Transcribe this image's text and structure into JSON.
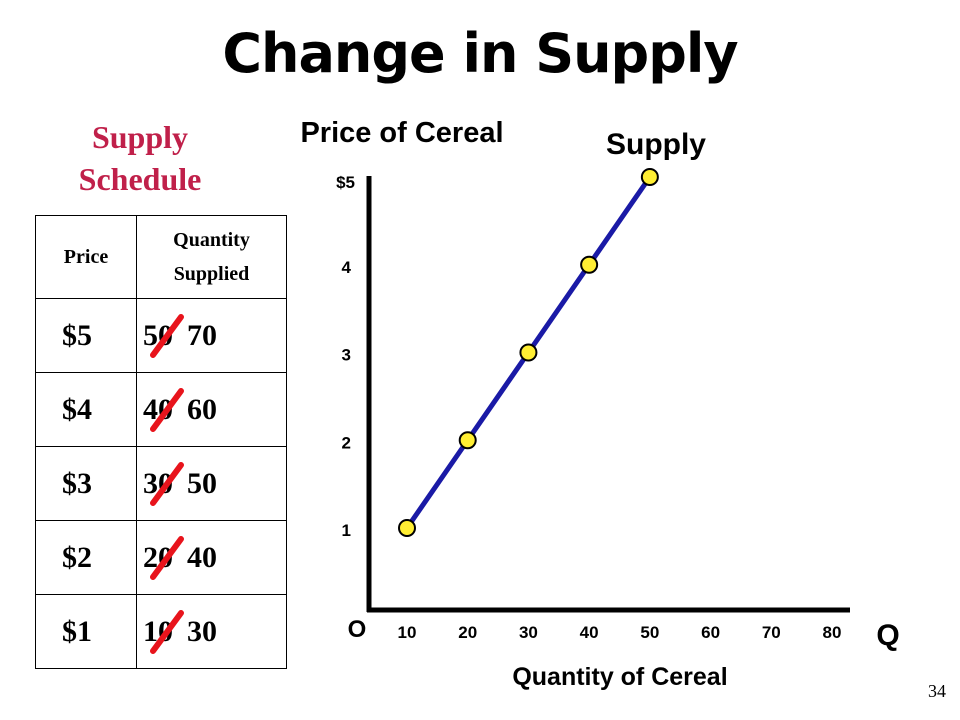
{
  "slide": {
    "title": "Change in Supply",
    "page_number": "34"
  },
  "schedule": {
    "title_line1": "Supply",
    "title_line2": "Schedule",
    "header_price": "Price",
    "header_qty_line1": "Quantity",
    "header_qty_line2": "Supplied",
    "rows": [
      {
        "price": "$5",
        "old_qty": "50",
        "new_qty": "70"
      },
      {
        "price": "$4",
        "old_qty": "40",
        "new_qty": "60"
      },
      {
        "price": "$3",
        "old_qty": "30",
        "new_qty": "50"
      },
      {
        "price": "$2",
        "old_qty": "20",
        "new_qty": "40"
      },
      {
        "price": "$1",
        "old_qty": "10",
        "new_qty": "30"
      }
    ],
    "strike_color": "#e8141c",
    "title_color": "#c0204a"
  },
  "chart_data": {
    "type": "line",
    "ylabel": "Price of Cereal",
    "xlabel": "Quantity of Cereal",
    "x_axis_letter": "Q",
    "origin_label": "O",
    "x_ticks": [
      "10",
      "20",
      "30",
      "40",
      "50",
      "60",
      "70",
      "80"
    ],
    "y_ticks": [
      "$5",
      "4",
      "3",
      "2",
      "1"
    ],
    "xlim": [
      0,
      80
    ],
    "ylim": [
      0,
      5
    ],
    "series": [
      {
        "name": "Supply",
        "x": [
          10,
          20,
          30,
          40,
          50
        ],
        "y": [
          1,
          2,
          3,
          4,
          5
        ],
        "line_color": "#1a1aa6",
        "marker_color": "#ffee33"
      }
    ]
  }
}
